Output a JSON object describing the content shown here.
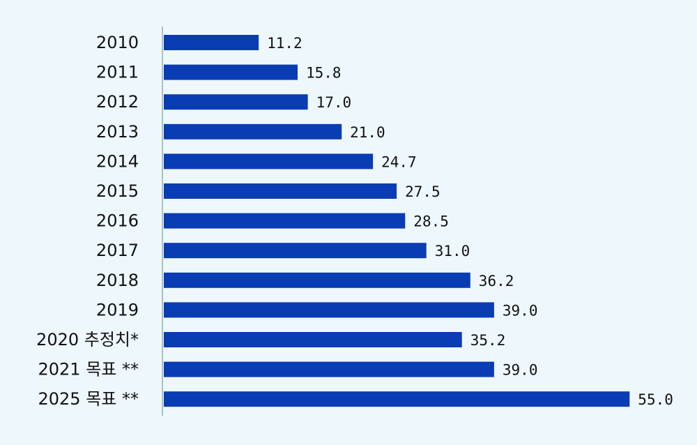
{
  "chart_data": {
    "type": "bar",
    "orientation": "horizontal",
    "categories": [
      "2010",
      "2011",
      "2012",
      "2013",
      "2014",
      "2015",
      "2016",
      "2017",
      "2018",
      "2019",
      "2020 추정치*",
      "2021 목표 **",
      "2025 목표 **"
    ],
    "values": [
      11.2,
      15.8,
      17.0,
      21.0,
      24.7,
      27.5,
      28.5,
      31.0,
      36.2,
      39.0,
      35.2,
      39.0,
      55.0
    ],
    "value_labels": [
      "11.2",
      "15.8",
      "17.0",
      "21.0",
      "24.7",
      "27.5",
      "28.5",
      "31.0",
      "36.2",
      "39.0",
      "35.2",
      "39.0",
      "55.0"
    ],
    "title": "",
    "xlabel": "",
    "ylabel": "",
    "xlim": [
      0,
      55
    ],
    "grid": false,
    "legend": "none",
    "colors": {
      "bar": "#0a3cb4",
      "axis": "#a8c2c9",
      "background": "#eef7fb",
      "text": "#111111"
    }
  }
}
